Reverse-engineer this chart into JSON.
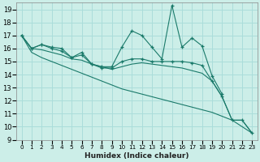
{
  "xlabel": "Humidex (Indice chaleur)",
  "background_color": "#cceee8",
  "grid_color": "#aaddda",
  "line_color": "#1a7a6a",
  "xlim": [
    -0.5,
    23.5
  ],
  "ylim": [
    9,
    19.5
  ],
  "xticks": [
    0,
    1,
    2,
    3,
    4,
    5,
    6,
    7,
    8,
    9,
    10,
    11,
    12,
    13,
    14,
    15,
    16,
    17,
    18,
    19,
    20,
    21,
    22,
    23
  ],
  "yticks": [
    9,
    10,
    11,
    12,
    13,
    14,
    15,
    16,
    17,
    18,
    19
  ],
  "lines": [
    {
      "x": [
        0,
        1,
        2,
        3,
        4,
        5,
        6,
        7,
        8,
        9,
        10,
        11,
        12,
        13,
        14,
        15,
        16,
        17,
        18,
        19,
        20
      ],
      "y": [
        17,
        16,
        16.3,
        16.1,
        16.0,
        15.3,
        15.7,
        14.8,
        14.6,
        14.6,
        16.1,
        17.35,
        17.0,
        16.1,
        15.2,
        19.3,
        16.1,
        16.8,
        16.2,
        13.9,
        12.5
      ],
      "marker": true
    },
    {
      "x": [
        0,
        1,
        2,
        3,
        4,
        5,
        6,
        7,
        8,
        9,
        10,
        11,
        12,
        13,
        14,
        15,
        16,
        17,
        18,
        19,
        20,
        21,
        22,
        23
      ],
      "y": [
        17,
        16,
        16.3,
        16.0,
        15.8,
        15.3,
        15.5,
        14.8,
        14.5,
        14.5,
        15.0,
        15.2,
        15.2,
        15.0,
        15.0,
        15.0,
        15.0,
        14.9,
        14.7,
        13.5,
        12.3,
        10.5,
        10.5,
        9.5
      ],
      "marker": true
    },
    {
      "x": [
        0,
        1,
        2,
        3,
        4,
        5,
        6,
        7,
        8,
        9,
        10,
        11,
        12,
        13,
        14,
        15,
        16,
        17,
        18,
        19,
        20,
        21,
        22,
        23
      ],
      "y": [
        17,
        16,
        15.9,
        15.7,
        15.5,
        15.2,
        15.1,
        14.8,
        14.6,
        14.4,
        14.6,
        14.8,
        14.9,
        14.8,
        14.7,
        14.6,
        14.5,
        14.3,
        14.1,
        13.5,
        12.3,
        10.5,
        10.5,
        9.5
      ],
      "marker": false
    },
    {
      "x": [
        0,
        1,
        2,
        3,
        4,
        5,
        6,
        7,
        8,
        9,
        10,
        11,
        12,
        13,
        14,
        15,
        16,
        17,
        18,
        19,
        20,
        21,
        22,
        23
      ],
      "y": [
        17,
        15.7,
        15.3,
        15.0,
        14.7,
        14.4,
        14.1,
        13.8,
        13.5,
        13.2,
        12.9,
        12.7,
        12.5,
        12.3,
        12.1,
        11.9,
        11.7,
        11.5,
        11.3,
        11.1,
        10.8,
        10.5,
        10.0,
        9.5
      ],
      "marker": false
    }
  ]
}
